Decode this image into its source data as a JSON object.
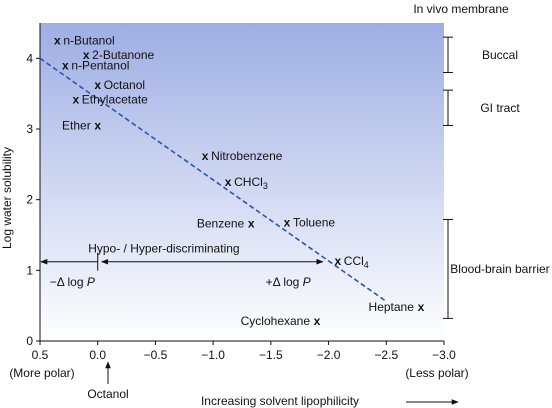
{
  "chart_data": {
    "type": "scatter",
    "title": "",
    "xlabel": "Increasing solvent lipophilicity",
    "ylabel": "Log water solubility",
    "xlim": [
      0.5,
      -3.0
    ],
    "ylim": [
      0,
      4.5
    ],
    "x_ticks": [
      {
        "value": 0.5,
        "label": "0.5"
      },
      {
        "value": 0.0,
        "label": "0.0"
      },
      {
        "value": -0.5,
        "label": "−0.5"
      },
      {
        "value": -1.0,
        "label": "−1.0"
      },
      {
        "value": -1.5,
        "label": "−1.5"
      },
      {
        "value": -2.0,
        "label": "−2.0"
      },
      {
        "value": -2.5,
        "label": "−2.5"
      },
      {
        "value": -3.0,
        "label": "−3.0"
      }
    ],
    "y_ticks": [
      {
        "value": 0,
        "label": "0"
      },
      {
        "value": 1,
        "label": "1"
      },
      {
        "value": 2,
        "label": "2"
      },
      {
        "value": 3,
        "label": "3"
      },
      {
        "value": 4,
        "label": "4"
      }
    ],
    "x_end_labels": {
      "left": "(More polar)",
      "right": "(Less polar)"
    },
    "octanol_marker": {
      "x": 0.0,
      "label": "Octanol"
    },
    "marker_symbol": "x",
    "points": [
      {
        "label": "n-Butanol",
        "x": 0.35,
        "y": 4.25,
        "label_side": "right"
      },
      {
        "label": "2-Butanone",
        "x": 0.1,
        "y": 4.05,
        "label_side": "right"
      },
      {
        "label": "n-Pentanol",
        "x": 0.28,
        "y": 3.9,
        "label_side": "right"
      },
      {
        "label": "Octanol",
        "x": 0.0,
        "y": 3.62,
        "label_side": "right"
      },
      {
        "label": "Ethylacetate",
        "x": 0.19,
        "y": 3.42,
        "label_side": "right"
      },
      {
        "label": "Ether",
        "x": 0.0,
        "y": 3.05,
        "label_side": "left"
      },
      {
        "label": "Nitrobenzene",
        "x": -0.93,
        "y": 2.62,
        "label_side": "right"
      },
      {
        "label": "CHCl",
        "label_sub": "3",
        "x": -1.13,
        "y": 2.25,
        "label_side": "right"
      },
      {
        "label": "Benzene",
        "x": -1.33,
        "y": 1.66,
        "label_side": "left"
      },
      {
        "label": "Toluene",
        "x": -1.64,
        "y": 1.68,
        "label_side": "right"
      },
      {
        "label": "CCl",
        "label_sub": "4",
        "x": -2.08,
        "y": 1.13,
        "label_side": "right"
      },
      {
        "label": "Heptane",
        "x": -2.8,
        "y": 0.48,
        "label_side": "left"
      },
      {
        "label": "Cyclohexane",
        "x": -1.9,
        "y": 0.28,
        "label_side": "left"
      }
    ],
    "regression_line": {
      "x1": 0.5,
      "y1": 4.0,
      "x2": -2.5,
      "y2": 0.56,
      "style": "dashed",
      "color": "#2b55b0"
    },
    "annotations": {
      "discriminating": {
        "label": "Hypo- / Hyper-discriminating",
        "y": 1.15,
        "x_left": 0.5,
        "x_mid": 0.0,
        "x_right": -1.95
      },
      "minus_delta": {
        "label": "−Δ log ",
        "italic": "P",
        "x": 0.22,
        "y": 0.78
      },
      "plus_delta": {
        "label": "+Δ log ",
        "italic": "P",
        "x": -1.65,
        "y": 0.78
      }
    },
    "membranes": {
      "title": "In vivo membrane",
      "items": [
        {
          "label": "Buccal",
          "y_low": 3.8,
          "y_high": 4.3
        },
        {
          "label": "GI tract",
          "y_low": 3.05,
          "y_high": 3.55
        },
        {
          "label": "Blood-brain barrier",
          "y_low": 0.32,
          "y_high": 1.72
        }
      ]
    },
    "lipophilicity_arrow": "right",
    "grid": false,
    "legend": "none",
    "colors": {
      "background_top": "#9eaee4",
      "background_bottom": "#ffffff",
      "line": "#2b55b0",
      "ink": "#111111"
    }
  }
}
